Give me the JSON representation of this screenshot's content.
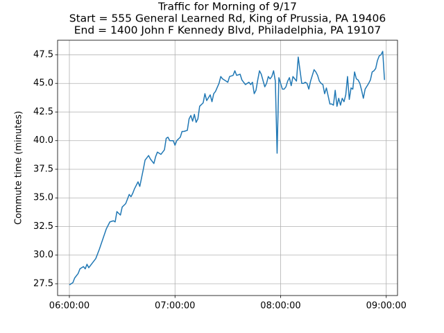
{
  "chart_data": {
    "type": "line",
    "title": [
      "Traffic for Morning of 9/17",
      "Start = 555 General Learned Rd, King of Prussia, PA 19406",
      "End = 1400 John F Kennedy Blvd, Philadelphia, PA 19107"
    ],
    "y_label": "Commute time (minutes)",
    "x": [
      "06:00:00",
      "06:02:00",
      "06:03:00",
      "06:05:00",
      "06:06:00",
      "06:08:00",
      "06:09:00",
      "06:10:00",
      "06:11:00",
      "06:13:00",
      "06:15:00",
      "06:17:00",
      "06:19:00",
      "06:21:00",
      "06:23:00",
      "06:25:00",
      "06:26:00",
      "06:27:00",
      "06:29:00",
      "06:30:00",
      "06:32:00",
      "06:34:00",
      "06:35:00",
      "06:36:00",
      "06:37:00",
      "06:39:00",
      "06:40:00",
      "06:42:00",
      "06:43:00",
      "06:45:00",
      "06:46:00",
      "06:48:00",
      "06:49:00",
      "06:50:00",
      "06:52:00",
      "06:54:00",
      "06:55:00",
      "06:56:00",
      "06:57:00",
      "06:59:00",
      "07:00:00",
      "07:01:00",
      "07:03:00",
      "07:04:00",
      "07:05:00",
      "07:07:00",
      "07:08:00",
      "07:09:00",
      "07:10:00",
      "07:11:00",
      "07:12:00",
      "07:13:00",
      "07:14:00",
      "07:16:00",
      "07:17:00",
      "07:18:00",
      "07:20:00",
      "07:21:00",
      "07:22:00",
      "07:23:00",
      "07:25:00",
      "07:26:00",
      "07:27:00",
      "07:29:00",
      "07:30:00",
      "07:31:00",
      "07:33:00",
      "07:34:00",
      "07:35:00",
      "07:37:00",
      "07:38:00",
      "07:39:00",
      "07:40:00",
      "07:42:00",
      "07:43:00",
      "07:44:00",
      "07:45:00",
      "07:46:00",
      "07:47:00",
      "07:48:00",
      "07:49:00",
      "07:51:00",
      "07:52:00",
      "07:53:00",
      "07:54:00",
      "07:55:00",
      "07:56:00",
      "07:57:00",
      "07:58:00",
      "07:59:00",
      "08:01:00",
      "08:02:00",
      "08:03:00",
      "08:04:00",
      "08:05:00",
      "08:06:00",
      "08:07:00",
      "08:08:00",
      "08:09:00",
      "08:10:00",
      "08:12:00",
      "08:13:00",
      "08:14:00",
      "08:15:00",
      "08:16:00",
      "08:17:00",
      "08:19:00",
      "08:20:00",
      "08:21:00",
      "08:22:00",
      "08:23:00",
      "08:24:00",
      "08:25:00",
      "08:26:00",
      "08:27:00",
      "08:28:00",
      "08:29:00",
      "08:30:00",
      "08:31:00",
      "08:32:00",
      "08:33:00",
      "08:34:00",
      "08:35:00",
      "08:36:00",
      "08:37:00",
      "08:38:00",
      "08:39:00",
      "08:40:00",
      "08:41:00",
      "08:42:00",
      "08:43:00",
      "08:44:00",
      "08:45:00",
      "08:46:00",
      "08:47:00",
      "08:48:00",
      "08:50:00",
      "08:51:00",
      "08:52:00",
      "08:53:00",
      "08:54:00",
      "08:55:00",
      "08:56:00",
      "08:57:00",
      "08:58:00",
      "08:59:00"
    ],
    "series": [
      {
        "name": "Commute time",
        "color": "#1f77b4",
        "values": [
          27.4,
          27.6,
          28.0,
          28.4,
          28.8,
          29.0,
          28.8,
          29.2,
          28.9,
          29.3,
          29.7,
          30.5,
          31.4,
          32.3,
          32.9,
          33.0,
          32.9,
          33.8,
          33.5,
          34.2,
          34.5,
          35.3,
          35.1,
          35.4,
          35.8,
          36.4,
          36.0,
          37.5,
          38.3,
          38.7,
          38.4,
          38.0,
          38.6,
          39.0,
          38.8,
          39.2,
          40.2,
          40.3,
          40.0,
          40.0,
          39.6,
          40.0,
          40.3,
          40.8,
          40.8,
          40.9,
          41.9,
          42.2,
          41.7,
          42.3,
          41.6,
          41.9,
          43.0,
          43.3,
          44.1,
          43.5,
          44.0,
          43.4,
          44.1,
          44.3,
          45.0,
          45.6,
          45.4,
          45.2,
          45.1,
          45.6,
          45.7,
          46.1,
          45.7,
          45.8,
          45.3,
          45.1,
          44.9,
          45.1,
          44.9,
          45.1,
          44.1,
          44.4,
          45.3,
          46.1,
          45.8,
          44.7,
          45.0,
          45.6,
          45.4,
          45.6,
          46.1,
          45.2,
          38.9,
          45.5,
          44.5,
          44.5,
          44.7,
          45.2,
          45.5,
          44.8,
          45.6,
          45.4,
          45.2,
          47.3,
          45.0,
          45.0,
          45.1,
          45.0,
          44.5,
          45.2,
          46.2,
          46.0,
          45.7,
          45.2,
          45.0,
          44.9,
          44.1,
          44.6,
          43.9,
          43.2,
          43.2,
          43.1,
          44.4,
          43.0,
          43.7,
          43.1,
          43.7,
          43.4,
          44.0,
          45.6,
          43.6,
          44.6,
          44.5,
          46.0,
          45.4,
          45.3,
          45.0,
          44.4,
          43.7,
          44.5,
          45.0,
          45.3,
          46.0,
          46.1,
          46.3,
          47.0,
          47.4,
          47.5,
          47.8,
          45.3
        ]
      }
    ],
    "xlim": [
      "05:53:18",
      "09:06:24"
    ],
    "xticks": [
      "06:00:00",
      "07:00:00",
      "08:00:00",
      "09:00:00"
    ],
    "ylim": [
      26.47,
      48.77
    ],
    "yticks": [
      {
        "value": 27.5,
        "label": "27.5"
      },
      {
        "value": 30,
        "label": "30.0"
      },
      {
        "value": 32.5,
        "label": "32.5"
      },
      {
        "value": 35,
        "label": "35.0"
      },
      {
        "value": 37.5,
        "label": "37.5"
      },
      {
        "value": 40,
        "label": "40.0"
      },
      {
        "value": 42.5,
        "label": "42.5"
      },
      {
        "value": 45,
        "label": "45.0"
      },
      {
        "value": 47.5,
        "label": "47.5"
      }
    ],
    "grid": true
  }
}
